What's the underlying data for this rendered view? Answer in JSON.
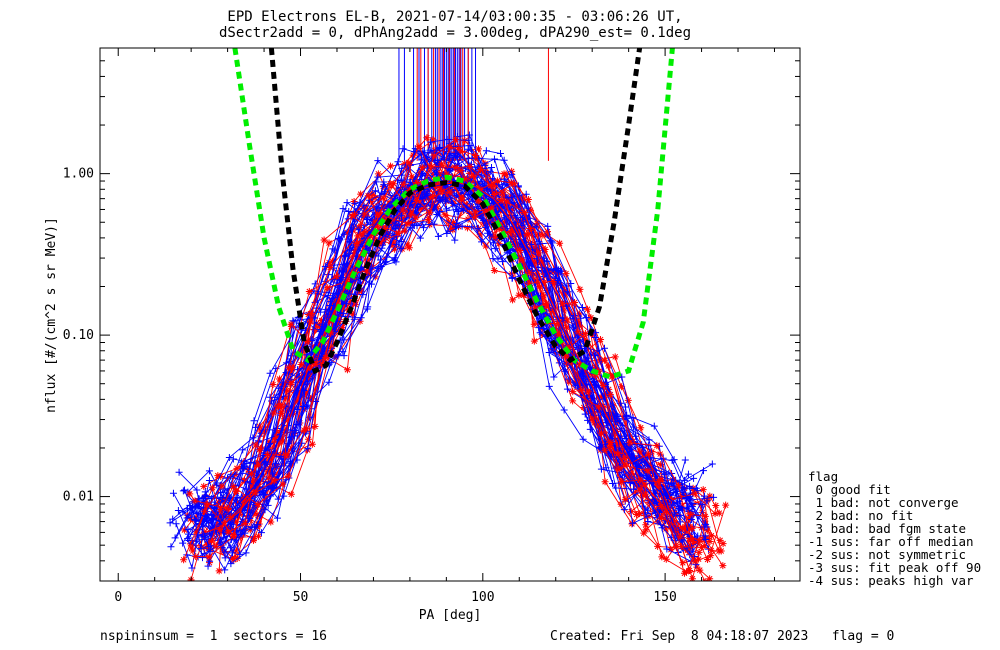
{
  "chart_data": {
    "type": "line",
    "title": "EPD Electrons EL-B, 2021-07-14/03:00:35 - 03:06:26 UT,",
    "subtitle": "dSectr2add = 0, dPhAng2add = 3.00deg, dPA290_est=   0.1deg",
    "xlabel": "PA [deg]",
    "ylabel": "nflux [#/(cm^2 s sr MeV)]",
    "xlim": [
      -5,
      187
    ],
    "ylim": [
      0.003,
      6.0
    ],
    "yscale": "log",
    "xticks": [
      0,
      50,
      100,
      150
    ],
    "xtick_labels": [
      "0",
      "50",
      "100",
      "150"
    ],
    "yticks": [
      0.01,
      0.1,
      1.0
    ],
    "ytick_labels": [
      "0.01",
      "0.10",
      "1.00"
    ],
    "grid": false,
    "series": [
      {
        "name": "blue",
        "color": "#0000ff",
        "marker": "plus",
        "x": [
          20,
          24,
          28,
          33,
          38,
          43,
          48,
          53,
          58,
          63,
          68,
          73,
          78,
          83,
          88,
          93,
          98,
          103,
          108,
          113,
          118,
          123,
          128,
          133,
          138,
          143,
          148,
          153,
          158
        ],
        "y": [
          0.008,
          0.0075,
          0.007,
          0.009,
          0.012,
          0.02,
          0.04,
          0.075,
          0.13,
          0.24,
          0.4,
          0.58,
          0.72,
          0.8,
          0.85,
          0.86,
          0.82,
          0.68,
          0.48,
          0.3,
          0.17,
          0.1,
          0.06,
          0.036,
          0.022,
          0.014,
          0.011,
          0.009,
          0.008
        ]
      },
      {
        "name": "red",
        "color": "#ff0000",
        "marker": "star",
        "x": [
          24,
          28,
          33,
          38,
          43,
          48,
          53,
          58,
          63,
          68,
          73,
          78,
          83,
          88,
          93,
          98,
          103,
          108,
          113,
          118,
          123,
          128,
          133,
          138,
          143,
          148,
          153,
          158,
          161
        ],
        "y": [
          0.006,
          0.0065,
          0.008,
          0.011,
          0.018,
          0.035,
          0.07,
          0.12,
          0.22,
          0.38,
          0.55,
          0.7,
          0.8,
          0.86,
          0.88,
          0.83,
          0.7,
          0.5,
          0.31,
          0.18,
          0.1,
          0.06,
          0.035,
          0.021,
          0.013,
          0.0095,
          0.007,
          0.0055,
          0.0052
        ]
      },
      {
        "name": "green",
        "color": "#00ee00",
        "style": "dashed",
        "x": [
          32,
          36,
          40,
          44,
          48,
          52,
          56,
          60,
          65,
          70,
          75,
          80,
          85,
          90,
          95,
          100,
          105,
          110,
          115,
          120,
          125,
          130,
          135,
          140,
          144,
          148,
          152
        ],
        "y": [
          6.0,
          1.5,
          0.4,
          0.15,
          0.08,
          0.07,
          0.09,
          0.14,
          0.25,
          0.42,
          0.62,
          0.8,
          0.9,
          0.95,
          0.9,
          0.72,
          0.45,
          0.27,
          0.16,
          0.1,
          0.07,
          0.06,
          0.055,
          0.06,
          0.12,
          0.6,
          6.0
        ]
      },
      {
        "name": "black",
        "color": "#000000",
        "style": "dashed",
        "x": [
          42,
          45,
          48,
          51,
          54,
          57,
          60,
          64,
          68,
          72,
          76,
          80,
          85,
          90,
          95,
          100,
          105,
          110,
          115,
          120,
          124,
          128,
          132,
          136,
          140,
          143
        ],
        "y": [
          6.0,
          1.0,
          0.25,
          0.09,
          0.06,
          0.065,
          0.09,
          0.15,
          0.26,
          0.42,
          0.6,
          0.76,
          0.85,
          0.88,
          0.84,
          0.65,
          0.4,
          0.22,
          0.13,
          0.085,
          0.07,
          0.08,
          0.15,
          0.5,
          2.0,
          6.0
        ]
      }
    ],
    "vlines": {
      "blue_x": [
        77,
        78.5,
        81,
        82.5,
        84,
        85,
        86,
        87,
        87.5,
        88,
        88.5,
        89,
        89.5,
        90,
        90.5,
        91,
        91.5,
        92,
        92.5,
        93,
        93.5,
        94,
        95,
        96,
        97,
        98
      ],
      "red_x": [
        82,
        83,
        85,
        86.5,
        88,
        89.2,
        90.8,
        92.2,
        93.8,
        94.5,
        96,
        118
      ]
    },
    "legend": {
      "title": "flag",
      "placement": "right",
      "entries": [
        " 0 good fit",
        " 1 bad: not converge",
        " 2 bad: no fit",
        " 3 bad: bad fgm state",
        "-1 sus: far off median",
        "-2 sus: not symmetric",
        "-3 sus: fit peak off 90",
        "-4 sus: peaks high var"
      ]
    }
  },
  "footer": {
    "left": "nspininsum =  1  sectors = 16",
    "right": "Created: Fri Sep  8 04:18:07 2023   flag = 0"
  }
}
